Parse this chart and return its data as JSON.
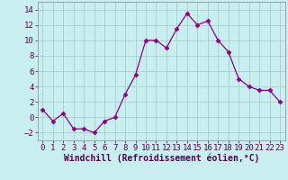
{
  "x": [
    0,
    1,
    2,
    3,
    4,
    5,
    6,
    7,
    8,
    9,
    10,
    11,
    12,
    13,
    14,
    15,
    16,
    17,
    18,
    19,
    20,
    21,
    22,
    23
  ],
  "y": [
    1,
    -0.5,
    0.5,
    -1.5,
    -1.5,
    -2,
    -0.5,
    0,
    3,
    5.5,
    10,
    10,
    9,
    11.5,
    13.5,
    12,
    12.5,
    10,
    8.5,
    5,
    4,
    3.5,
    3.5,
    2
  ],
  "line_color": "#880088",
  "marker": "D",
  "marker_size": 2.5,
  "bg_color": "#c8eef0",
  "grid_color": "#aacccc",
  "xlabel": "Windchill (Refroidissement éolien,°C)",
  "xlabel_fontsize": 7,
  "tick_fontsize": 6.5,
  "ylim": [
    -3,
    15
  ],
  "yticks": [
    -2,
    0,
    2,
    4,
    6,
    8,
    10,
    12,
    14
  ],
  "xlim": [
    -0.5,
    23.5
  ],
  "xticks": [
    0,
    1,
    2,
    3,
    4,
    5,
    6,
    7,
    8,
    9,
    10,
    11,
    12,
    13,
    14,
    15,
    16,
    17,
    18,
    19,
    20,
    21,
    22,
    23
  ],
  "spine_color": "#888888"
}
